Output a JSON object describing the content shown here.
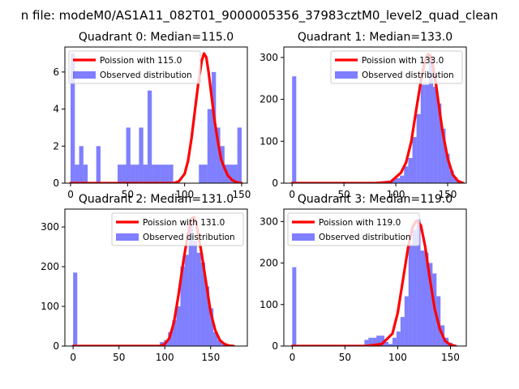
{
  "suptitle": "n file: modeM0/AS1A11_082T01_9000005356_37983cztM0_level2_quad_clean",
  "colors": {
    "observed": "#0000ff",
    "poisson": "#ff0000",
    "axis": "#000000"
  },
  "chart_data": [
    {
      "type": "bar",
      "title": "Quadrant 0: Median=115.0",
      "xlim": [
        -5,
        155
      ],
      "ylim": [
        0,
        7.35
      ],
      "xticks": [
        0,
        50,
        100,
        150
      ],
      "yticks": [
        0,
        2,
        4,
        6
      ],
      "bin_width": 3.75,
      "legend": [
        "Poission with 115.0",
        "Observed distribution"
      ],
      "legend_loc": "upper-left",
      "bins": [
        [
          0,
          7
        ],
        [
          3.75,
          1
        ],
        [
          7.5,
          2
        ],
        [
          11.25,
          1
        ],
        [
          22.5,
          2
        ],
        [
          41.25,
          1
        ],
        [
          45,
          1
        ],
        [
          48.75,
          3
        ],
        [
          52.5,
          1
        ],
        [
          56.25,
          1
        ],
        [
          60,
          3
        ],
        [
          63.75,
          1
        ],
        [
          67.5,
          5
        ],
        [
          71.25,
          1
        ],
        [
          75,
          1
        ],
        [
          78.75,
          1
        ],
        [
          82.5,
          1
        ],
        [
          86.25,
          1
        ],
        [
          101.25,
          0
        ],
        [
          112.5,
          1
        ],
        [
          116.25,
          1
        ],
        [
          120,
          4
        ],
        [
          123.75,
          6
        ],
        [
          127.5,
          3
        ],
        [
          131.25,
          2
        ],
        [
          135,
          1
        ],
        [
          138.75,
          1
        ],
        [
          142.5,
          1
        ],
        [
          146.25,
          3
        ]
      ],
      "curve": {
        "label": "Poission with 115.0",
        "x": [
          0,
          90,
          95,
          100,
          103,
          106,
          109,
          112,
          115,
          117,
          119,
          121,
          123,
          126,
          129,
          132,
          135,
          138,
          142,
          146,
          150
        ],
        "y": [
          0,
          0,
          0.1,
          0.5,
          1.2,
          2.4,
          3.9,
          5.4,
          6.6,
          7.0,
          6.8,
          6.0,
          5.0,
          3.5,
          2.3,
          1.3,
          0.8,
          0.4,
          0.15,
          0.04,
          0
        ]
      }
    },
    {
      "type": "bar",
      "title": "Quadrant 1: Median=133.0",
      "xlim": [
        -8,
        168
      ],
      "ylim": [
        0,
        325
      ],
      "xticks": [
        0,
        50,
        100,
        150
      ],
      "yticks": [
        0,
        100,
        200,
        300
      ],
      "bin_width": 4,
      "legend": [
        "Poission with 133.0",
        "Observed distribution"
      ],
      "legend_loc": "upper-right",
      "bins": [
        [
          0,
          255
        ],
        [
          4,
          1
        ],
        [
          8,
          1
        ],
        [
          12,
          1
        ],
        [
          16,
          1
        ],
        [
          20,
          1
        ],
        [
          24,
          1
        ],
        [
          28,
          1
        ],
        [
          32,
          1
        ],
        [
          36,
          1
        ],
        [
          40,
          1
        ],
        [
          44,
          1
        ],
        [
          48,
          1
        ],
        [
          52,
          1
        ],
        [
          56,
          1
        ],
        [
          60,
          1
        ],
        [
          64,
          1
        ],
        [
          68,
          1
        ],
        [
          72,
          3
        ],
        [
          76,
          3
        ],
        [
          80,
          3
        ],
        [
          84,
          3
        ],
        [
          88,
          5
        ],
        [
          92,
          6
        ],
        [
          96,
          10
        ],
        [
          100,
          12
        ],
        [
          104,
          18
        ],
        [
          108,
          40
        ],
        [
          112,
          60
        ],
        [
          116,
          110
        ],
        [
          120,
          165
        ],
        [
          124,
          235
        ],
        [
          128,
          235
        ],
        [
          132,
          300
        ],
        [
          136,
          230
        ],
        [
          140,
          190
        ],
        [
          144,
          130
        ],
        [
          148,
          70
        ],
        [
          152,
          30
        ],
        [
          156,
          12
        ],
        [
          160,
          3
        ]
      ],
      "curve": {
        "label": "Poission with 133.0",
        "x": [
          0,
          80,
          95,
          105,
          110,
          115,
          120,
          125,
          128,
          131,
          133,
          135,
          138,
          141,
          145,
          150,
          155,
          160,
          165
        ],
        "y": [
          0,
          0,
          3,
          25,
          50,
          100,
          180,
          255,
          290,
          308,
          305,
          290,
          250,
          195,
          125,
          60,
          20,
          5,
          0
        ]
      }
    },
    {
      "type": "bar",
      "title": "Quadrant 2: Median=131.0",
      "xlim": [
        -9,
        190
      ],
      "ylim": [
        0,
        345
      ],
      "xticks": [
        0,
        50,
        100,
        150
      ],
      "yticks": [
        0,
        100,
        200,
        300
      ],
      "bin_width": 4.5,
      "legend": [
        "Poission with 131.0",
        "Observed distribution"
      ],
      "legend_loc": "upper-right",
      "bins": [
        [
          0,
          185
        ],
        [
          76.5,
          1
        ],
        [
          81,
          1
        ],
        [
          85.5,
          3
        ],
        [
          90,
          3
        ],
        [
          94.5,
          10
        ],
        [
          99,
          15
        ],
        [
          103.5,
          35
        ],
        [
          108,
          65
        ],
        [
          112.5,
          100
        ],
        [
          117,
          200
        ],
        [
          121.5,
          230
        ],
        [
          126,
          310
        ],
        [
          130.5,
          265
        ],
        [
          135,
          235
        ],
        [
          139.5,
          210
        ],
        [
          144,
          150
        ],
        [
          148.5,
          95
        ],
        [
          153,
          35
        ],
        [
          157.5,
          15
        ],
        [
          162,
          5
        ]
      ],
      "curve": {
        "label": "Poission with 131.0",
        "x": [
          0,
          95,
          100,
          105,
          110,
          115,
          120,
          125,
          129,
          132,
          135,
          140,
          145,
          150,
          155,
          160,
          165,
          170,
          175
        ],
        "y": [
          0,
          0,
          5,
          20,
          60,
          130,
          210,
          280,
          320,
          325,
          300,
          235,
          160,
          85,
          40,
          15,
          5,
          1,
          0
        ]
      }
    },
    {
      "type": "bar",
      "title": "Quadrant 3: Median=119.0",
      "xlim": [
        -8,
        165
      ],
      "ylim": [
        0,
        330
      ],
      "xticks": [
        0,
        50,
        100,
        150
      ],
      "yticks": [
        0,
        100,
        200,
        300
      ],
      "bin_width": 3.8,
      "legend": [
        "Poission with 119.0",
        "Observed distribution"
      ],
      "legend_loc": "upper-left",
      "bins": [
        [
          0,
          190
        ],
        [
          68.4,
          15
        ],
        [
          72.2,
          20
        ],
        [
          76,
          20
        ],
        [
          79.8,
          25
        ],
        [
          83.6,
          25
        ],
        [
          87.4,
          10
        ],
        [
          91.2,
          5
        ],
        [
          95,
          20
        ],
        [
          98.8,
          35
        ],
        [
          102.6,
          70
        ],
        [
          106.4,
          120
        ],
        [
          110.2,
          245
        ],
        [
          114,
          280
        ],
        [
          117.8,
          305
        ],
        [
          121.6,
          230
        ],
        [
          125.4,
          225
        ],
        [
          129.2,
          200
        ],
        [
          133,
          175
        ],
        [
          136.8,
          120
        ],
        [
          140.6,
          50
        ],
        [
          144.4,
          20
        ],
        [
          148.2,
          8
        ],
        [
          152,
          2
        ]
      ],
      "curve": {
        "label": "Poission with 119.0",
        "x": [
          0,
          70,
          85,
          95,
          100,
          105,
          110,
          114,
          117,
          119,
          122,
          126,
          130,
          135,
          140,
          145,
          150,
          155
        ],
        "y": [
          0,
          0,
          5,
          30,
          80,
          160,
          240,
          285,
          300,
          302,
          290,
          240,
          170,
          90,
          40,
          12,
          3,
          0
        ]
      }
    }
  ]
}
